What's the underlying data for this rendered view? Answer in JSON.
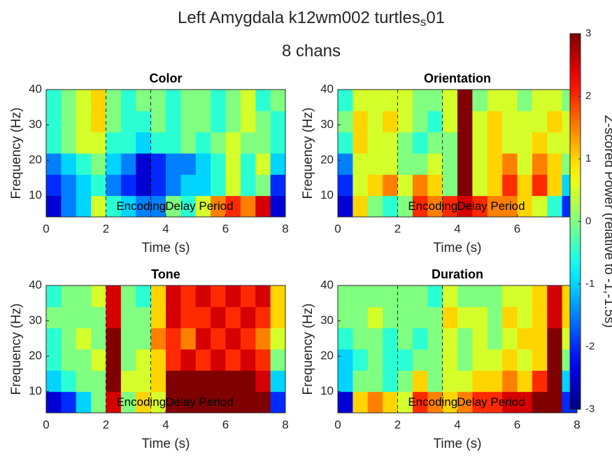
{
  "figure": {
    "title": {
      "text": "Left Amygdala k12wm002 turtles",
      "subscript": "s",
      "after": "01"
    },
    "subtitle": "8 chans"
  },
  "colorbar": {
    "clim": [
      -3,
      3
    ],
    "ticks": [
      -3,
      -2,
      -1,
      0,
      1,
      2,
      3
    ],
    "label": "Z-scored Power (relative to -1,-1.5s)",
    "colormap": "jet"
  },
  "chart_data": [
    {
      "type": "heatmap",
      "title": "Color",
      "xlabel": "Time (s)",
      "ylabel": "Frequency (Hz)",
      "xlim": [
        0,
        8
      ],
      "ylim": [
        4,
        40
      ],
      "xticks": [
        0,
        2,
        4,
        6,
        8
      ],
      "yticks": [
        10,
        20,
        30,
        40
      ],
      "event_lines": [
        2,
        3.5
      ],
      "annotations": [
        "Encoding",
        "Delay Period"
      ],
      "x": [
        0,
        0.5,
        1,
        1.5,
        2,
        2.5,
        3,
        3.5,
        4,
        4.5,
        5,
        5.5,
        6,
        6.5,
        7,
        7.5,
        8
      ],
      "y": [
        4,
        10,
        16,
        22,
        28,
        34,
        40
      ],
      "z": [
        [
          -2.5,
          -1.5,
          -1,
          0.5,
          -0.5,
          -1,
          -1.5,
          -1.5,
          0,
          -0.5,
          0.5,
          1.5,
          2,
          1.5,
          2.5,
          -2.5
        ],
        [
          -2,
          -1.5,
          -1,
          -0.5,
          -1.5,
          -2,
          -2.5,
          -2,
          -1.5,
          -1,
          -1,
          -0.5,
          0.5,
          -0.5,
          0,
          -2
        ],
        [
          -1.5,
          -1,
          -0.5,
          0,
          -1,
          -1.5,
          -2.5,
          -2,
          -1.5,
          -1.5,
          -1,
          -0.5,
          0.5,
          -0.5,
          0.5,
          -1
        ],
        [
          -0.5,
          0,
          0.5,
          0.5,
          -0.5,
          -0.5,
          -1,
          -0.5,
          -0.5,
          0,
          -0.5,
          0,
          0.5,
          0,
          0,
          -0.5
        ],
        [
          -0.5,
          0,
          0.5,
          1,
          0,
          -0.5,
          -0.5,
          0,
          -0.5,
          0,
          0,
          -0.5,
          0,
          0.5,
          0,
          -0.5
        ],
        [
          -0.5,
          0,
          0.5,
          1,
          0,
          -0.5,
          0,
          0,
          -0.5,
          0,
          0,
          -0.5,
          0,
          0.5,
          -0.5,
          0
        ]
      ]
    },
    {
      "type": "heatmap",
      "title": "Orientation",
      "xlabel": "Time (s)",
      "ylabel": "Frequency (Hz)",
      "xlim": [
        0,
        8
      ],
      "ylim": [
        4,
        40
      ],
      "xticks": [
        0,
        2,
        4,
        6,
        8
      ],
      "yticks": [
        10,
        20,
        30,
        40
      ],
      "event_lines": [
        2,
        3.5
      ],
      "annotations": [
        "Encoding",
        "Delay Period"
      ],
      "x": [
        0,
        0.5,
        1,
        1.5,
        2,
        2.5,
        3,
        3.5,
        4,
        4.5,
        5,
        5.5,
        6,
        6.5,
        7,
        7.5,
        8
      ],
      "y": [
        4,
        10,
        16,
        22,
        28,
        34,
        40
      ],
      "z": [
        [
          -2.5,
          1,
          0,
          -0.5,
          0,
          2,
          1.5,
          2,
          2.5,
          2,
          1.5,
          1.5,
          1,
          0.5,
          -0.5,
          -2
        ],
        [
          -2,
          0.5,
          1,
          1.5,
          0.5,
          1.5,
          1,
          0,
          3,
          0.5,
          1,
          2,
          1,
          2,
          1,
          -1
        ],
        [
          -1.5,
          0.5,
          0.5,
          0.5,
          0,
          0,
          0.5,
          0,
          3,
          0.5,
          1,
          1.5,
          0.5,
          1.5,
          1,
          0
        ],
        [
          -0.5,
          1,
          0.5,
          0.5,
          0,
          -0.5,
          0,
          0,
          3,
          0.5,
          1,
          0.5,
          0.5,
          1,
          0.5,
          0.5
        ],
        [
          0,
          1,
          0.5,
          1,
          0.5,
          0,
          -0.5,
          0.5,
          3,
          0.5,
          1,
          0.5,
          0.5,
          0.5,
          1,
          0.5
        ],
        [
          -0.5,
          0.5,
          0.5,
          0.5,
          0.5,
          0,
          0,
          0.5,
          3,
          0,
          0.5,
          0.5,
          0,
          0.5,
          0.5,
          0
        ]
      ]
    },
    {
      "type": "heatmap",
      "title": "Tone",
      "xlabel": "Time (s)",
      "ylabel": "Frequency (Hz)",
      "xlim": [
        0,
        8
      ],
      "ylim": [
        4,
        40
      ],
      "xticks": [
        0,
        2,
        4,
        6,
        8
      ],
      "yticks": [
        10,
        20,
        30,
        40
      ],
      "event_lines": [
        2,
        3.5
      ],
      "annotations": [
        "Encoding",
        "Delay Period"
      ],
      "x": [
        0,
        0.5,
        1,
        1.5,
        2,
        2.5,
        3,
        3.5,
        4,
        4.5,
        5,
        5.5,
        6,
        6.5,
        7,
        7.5,
        8
      ],
      "y": [
        4,
        10,
        16,
        22,
        28,
        34,
        40
      ],
      "z": [
        [
          -2.5,
          -2,
          -1,
          0,
          2.5,
          0,
          1,
          0.5,
          3,
          3,
          3,
          3,
          3,
          3,
          3,
          -2
        ],
        [
          -1,
          -0.5,
          0,
          0,
          3,
          0.5,
          0.5,
          1,
          3,
          3,
          3,
          3,
          3,
          3,
          2.5,
          -1
        ],
        [
          -0.5,
          0,
          0,
          0.5,
          3,
          0,
          0.5,
          1,
          2,
          2.5,
          2,
          2.5,
          2,
          2.5,
          2,
          0
        ],
        [
          -0.5,
          0,
          0.5,
          0,
          3,
          0,
          0,
          1.5,
          2,
          1.5,
          2.5,
          2,
          2.5,
          2,
          1.5,
          0.5
        ],
        [
          0,
          0,
          0,
          0,
          2.5,
          0,
          0,
          1,
          2.5,
          2,
          2,
          2.5,
          2,
          2.5,
          2,
          1
        ],
        [
          -0.5,
          0,
          0,
          0.5,
          2.5,
          0,
          -0.5,
          1,
          2.5,
          2,
          2.5,
          2,
          2.5,
          2,
          2.5,
          1
        ]
      ]
    },
    {
      "type": "heatmap",
      "title": "Duration",
      "xlabel": "Time (s)",
      "ylabel": "Frequency (Hz)",
      "xlim": [
        0,
        8
      ],
      "ylim": [
        4,
        40
      ],
      "xticks": [
        0,
        2,
        4,
        6,
        8
      ],
      "yticks": [
        10,
        20,
        30,
        40
      ],
      "event_lines": [
        2,
        3.5
      ],
      "annotations": [
        "Encoding",
        "Delay Period"
      ],
      "x": [
        0,
        0.5,
        1,
        1.5,
        2,
        2.5,
        3,
        3.5,
        4,
        4.5,
        5,
        5.5,
        6,
        6.5,
        7,
        7.5,
        8
      ],
      "y": [
        4,
        10,
        16,
        22,
        28,
        34,
        40
      ],
      "z": [
        [
          -2.5,
          1,
          1.5,
          1,
          0.5,
          2,
          1.5,
          1,
          1.5,
          2,
          2,
          2.5,
          2.5,
          3,
          3,
          -2
        ],
        [
          -1,
          0,
          0,
          -0.5,
          0,
          1,
          0,
          0.5,
          0.5,
          1,
          1,
          1.5,
          1,
          2,
          3,
          -1
        ],
        [
          -1,
          -0.5,
          0,
          -0.5,
          -0.5,
          0,
          0,
          0.5,
          0,
          0.5,
          0.5,
          1,
          0.5,
          1,
          3,
          0
        ],
        [
          -0.5,
          0,
          0,
          -0.5,
          0,
          -0.5,
          0,
          0.5,
          0,
          0.5,
          0,
          0.5,
          1,
          1,
          3,
          0.5
        ],
        [
          0,
          0,
          0.5,
          0,
          0,
          0,
          0,
          1,
          0.5,
          0.5,
          0,
          1,
          0.5,
          1,
          2.5,
          1
        ],
        [
          0,
          0,
          0,
          0,
          0,
          0,
          -0.5,
          0.5,
          0,
          0,
          0,
          0.5,
          0.5,
          1,
          2.5,
          1
        ]
      ]
    }
  ]
}
